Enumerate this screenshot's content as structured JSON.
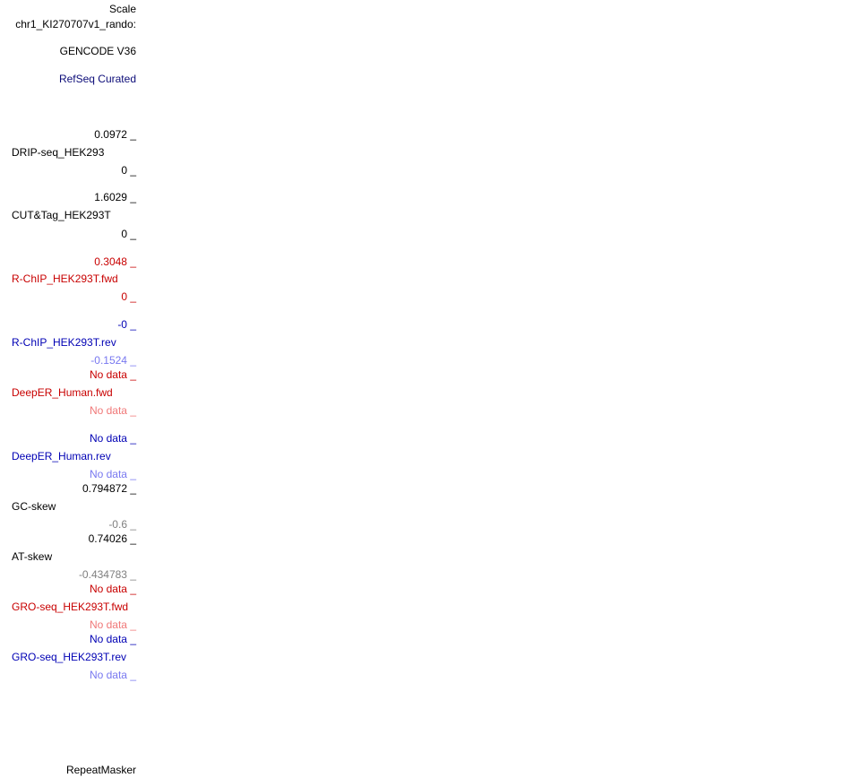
{
  "labels": [
    "Scale",
    "chr1_KI270707v1_rando:",
    "GENCODE V36",
    "RefSeq Curated",
    "0.0972 _",
    "DRIP-seq_HEK293",
    "0 _",
    "1.6029 _",
    "CUT&Tag_HEK293T",
    "0 _",
    "0.3048 _",
    "R-ChIP_HEK293T.fwd",
    "0 _",
    "-0 _",
    "R-ChIP_HEK293T.rev",
    "-0.1524 _",
    "No data _",
    "DeepER_Human.fwd",
    "No data _",
    "No data _",
    "DeepER_Human.rev",
    "No data _",
    "0.794872 _",
    "GC-skew",
    "-0.6 _",
    "0.74026 _",
    "AT-skew",
    "-0.434783 _",
    "No data _",
    "GRO-seq_HEK293T.fwd",
    "No data _",
    "No data _",
    "GRO-seq_HEK293T.rev",
    "No data _",
    "RepeatMasker"
  ]
}
